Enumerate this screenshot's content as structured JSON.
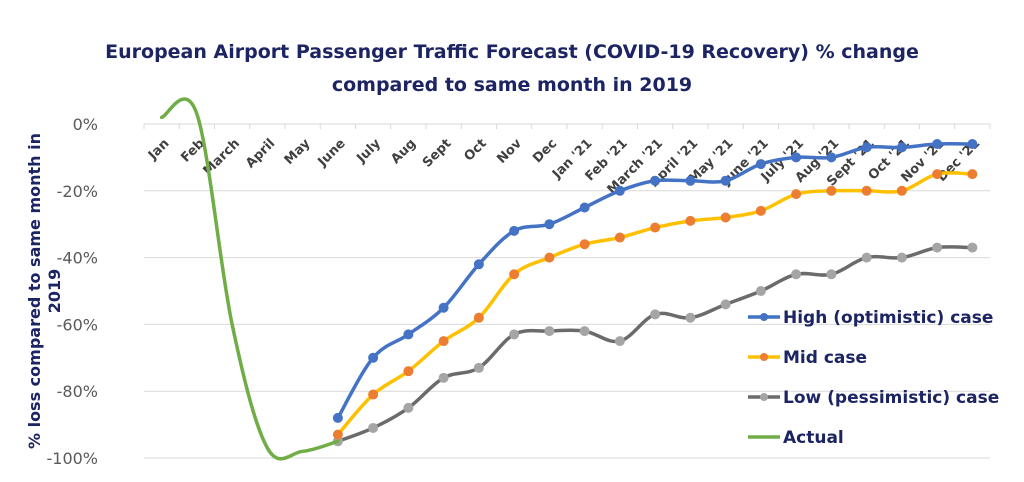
{
  "chart_data": {
    "type": "line",
    "title": [
      "European Airport Passenger Traffic Forecast (COVID-19 Recovery) % change",
      "compared to same month in 2019"
    ],
    "xlabel": "",
    "ylabel": [
      "% loss compared to same month in",
      "2019"
    ],
    "ylim": [
      -100,
      0
    ],
    "yticks": [
      0,
      -20,
      -40,
      -60,
      -80,
      -100
    ],
    "ytick_labels": [
      "0%",
      "-20%",
      "-40%",
      "-60%",
      "-80%",
      "-100%"
    ],
    "grid": true,
    "legend_position": "right",
    "categories": [
      "Jan",
      "Feb",
      "March",
      "April",
      "May",
      "June",
      "July",
      "Aug",
      "Sept",
      "Oct",
      "Nov",
      "Dec",
      "Jan '21",
      "Feb '21",
      "March '21",
      "April '21",
      "May '21",
      "June '21",
      "July '21",
      "Aug '21",
      "Sept '21",
      "Oct '21",
      "Nov '21",
      "Dec '21"
    ],
    "series": [
      {
        "name": "High (optimistic) case",
        "line_color": "#4472c4",
        "marker_color": "#4472c4",
        "markers": true,
        "smooth": true,
        "values": [
          null,
          null,
          null,
          null,
          null,
          -88,
          -70,
          -63,
          -55,
          -42,
          -32,
          -30,
          -25,
          -20,
          -17,
          -17,
          -17,
          -12,
          -10,
          -10,
          -7,
          -7,
          -6,
          -6
        ]
      },
      {
        "name": "Mid case",
        "line_color": "#ffc000",
        "marker_color": "#ed7d31",
        "markers": true,
        "smooth": true,
        "values": [
          null,
          null,
          null,
          null,
          null,
          -93,
          -81,
          -74,
          -65,
          -58,
          -45,
          -40,
          -36,
          -34,
          -31,
          -29,
          -28,
          -26,
          -21,
          -20,
          -20,
          -20,
          -15,
          -15
        ]
      },
      {
        "name": "Low (pessimistic) case",
        "line_color": "#6b6b6b",
        "marker_color": "#a5a5a5",
        "markers": true,
        "smooth": true,
        "values": [
          null,
          null,
          null,
          null,
          null,
          -95,
          -91,
          -85,
          -76,
          -73,
          -63,
          -62,
          -62,
          -65,
          -57,
          -58,
          -54,
          -50,
          -45,
          -45,
          -40,
          -40,
          -37,
          -37
        ]
      },
      {
        "name": "Actual",
        "line_color": "#70ad47",
        "marker_color": null,
        "markers": false,
        "smooth": true,
        "values": [
          2,
          3,
          -60,
          -97,
          -98,
          -95,
          null,
          null,
          null,
          null,
          null,
          null,
          null,
          null,
          null,
          null,
          null,
          null,
          null,
          null,
          null,
          null,
          null,
          null
        ]
      }
    ]
  }
}
